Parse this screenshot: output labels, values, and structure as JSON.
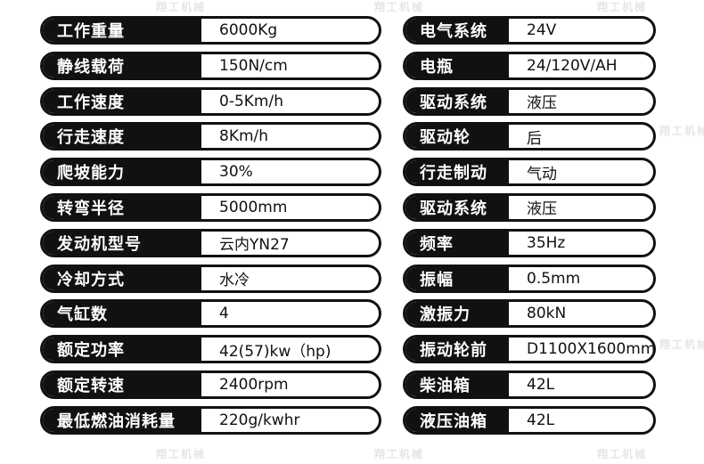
{
  "watermark": "翔工机械",
  "left": [
    {
      "label": "工作重量",
      "value": "6000Kg"
    },
    {
      "label": "静线载荷",
      "value": "150N/cm"
    },
    {
      "label": "工作速度",
      "value": "0-5Km/h"
    },
    {
      "label": "行走速度",
      "value": "8Km/h"
    },
    {
      "label": "爬坡能力",
      "value": "30%"
    },
    {
      "label": "转弯半径",
      "value": "5000mm"
    },
    {
      "label": "发动机型号",
      "value": "云内YN27"
    },
    {
      "label": "冷却方式",
      "value": "水冷"
    },
    {
      "label": "气缸数",
      "value": "4"
    },
    {
      "label": "额定功率",
      "value": "42(57)kw（hp)"
    },
    {
      "label": "额定转速",
      "value": "2400rpm"
    },
    {
      "label": "最低燃油消耗量",
      "value": "220g/kwhr"
    }
  ],
  "right": [
    {
      "label": "电气系统",
      "value": "24V"
    },
    {
      "label": "电瓶",
      "value": "24/120V/AH"
    },
    {
      "label": "驱动系统",
      "value": "液压"
    },
    {
      "label": "驱动轮",
      "value": "后"
    },
    {
      "label": "行走制动",
      "value": "气动"
    },
    {
      "label": "驱动系统",
      "value": "液压"
    },
    {
      "label": "频率",
      "value": "35Hz"
    },
    {
      "label": "振幅",
      "value": "0.5mm"
    },
    {
      "label": "激振力",
      "value": "80kN"
    },
    {
      "label": "振动轮前",
      "value": "D1100X1600mm"
    },
    {
      "label": "柴油箱",
      "value": "42L"
    },
    {
      "label": "液压油箱",
      "value": "42L"
    }
  ]
}
